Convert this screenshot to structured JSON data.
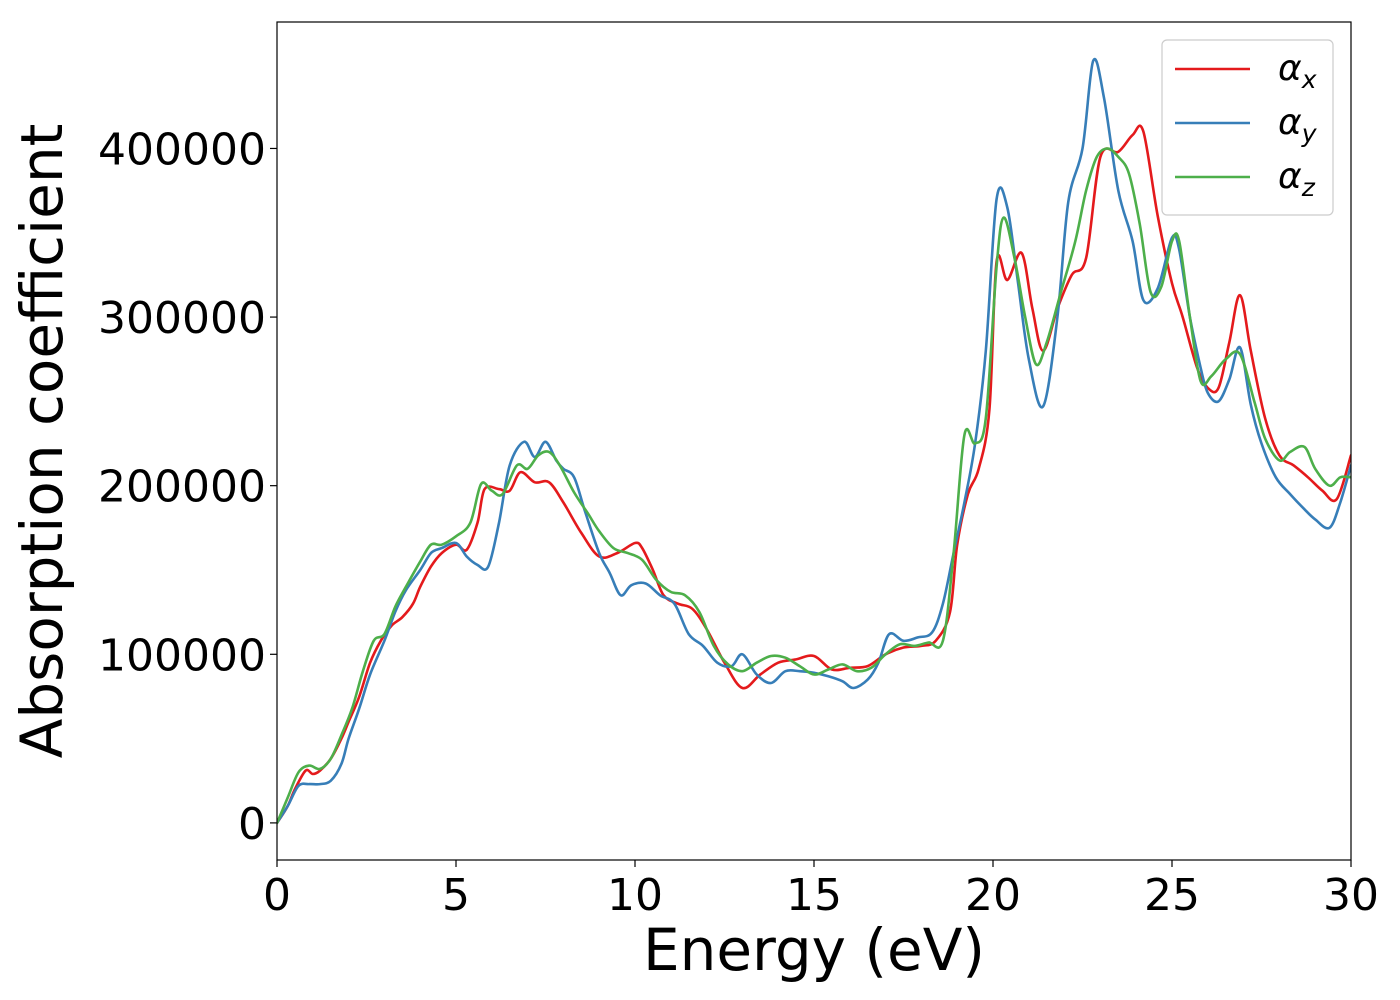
{
  "chart_data": {
    "type": "line",
    "title": "",
    "xlabel": "Energy (eV)",
    "ylabel": "Absorption coefficient",
    "xlim": [
      0,
      30
    ],
    "ylim": [
      -22000,
      475000
    ],
    "xticks": [
      0,
      5,
      10,
      15,
      20,
      25,
      30
    ],
    "yticks": [
      0,
      100000,
      200000,
      300000,
      400000
    ],
    "xtick_labels": [
      "0",
      "5",
      "10",
      "15",
      "20",
      "25",
      "30"
    ],
    "ytick_labels": [
      "0",
      "100000",
      "200000",
      "300000",
      "400000"
    ],
    "grid": false,
    "legend_position": "top-right",
    "series": [
      {
        "name": "αx",
        "label_base": "α",
        "label_sub": "x",
        "color": "#e41a1c",
        "x": [
          0,
          0.3,
          0.5,
          0.8,
          1.0,
          1.2,
          1.5,
          1.8,
          2.0,
          2.3,
          2.6,
          2.9,
          3.2,
          3.5,
          3.8,
          4.0,
          4.3,
          4.6,
          5.0,
          5.3,
          5.6,
          5.8,
          6.2,
          6.5,
          6.8,
          7.2,
          7.6,
          8.0,
          8.5,
          9.0,
          9.5,
          10.0,
          10.2,
          10.5,
          10.8,
          11.2,
          11.6,
          12.0,
          12.5,
          13.0,
          13.5,
          14.0,
          14.5,
          15.0,
          15.5,
          16.0,
          16.5,
          17.0,
          17.5,
          18.0,
          18.4,
          18.8,
          19.0,
          19.3,
          19.6,
          19.9,
          20.1,
          20.4,
          20.8,
          21.1,
          21.4,
          21.8,
          22.2,
          22.6,
          23.0,
          23.5,
          23.9,
          24.2,
          24.6,
          25.0,
          25.3,
          25.7,
          26.0,
          26.3,
          26.6,
          26.9,
          27.2,
          27.6,
          28.0,
          28.4,
          28.8,
          29.2,
          29.6,
          30.0
        ],
        "y": [
          0,
          10000,
          20000,
          31000,
          29000,
          31000,
          38000,
          50000,
          60000,
          75000,
          95000,
          108000,
          117000,
          122000,
          130000,
          140000,
          152000,
          160000,
          165000,
          162000,
          178000,
          198000,
          198000,
          197000,
          208000,
          202000,
          202000,
          190000,
          172000,
          158000,
          160000,
          166000,
          163000,
          150000,
          135000,
          130000,
          127000,
          115000,
          95000,
          80000,
          88000,
          95000,
          97000,
          99000,
          91000,
          92000,
          93000,
          100000,
          104000,
          105000,
          108000,
          125000,
          165000,
          195000,
          210000,
          245000,
          333000,
          322000,
          338000,
          305000,
          280000,
          305000,
          325000,
          335000,
          395000,
          398000,
          408000,
          410000,
          360000,
          320000,
          300000,
          270000,
          258000,
          258000,
          285000,
          313000,
          280000,
          240000,
          218000,
          212000,
          205000,
          197000,
          192000,
          218000
        ]
      },
      {
        "name": "αy",
        "label_base": "α",
        "label_sub": "y",
        "color": "#377eb8",
        "x": [
          0,
          0.3,
          0.6,
          0.9,
          1.2,
          1.5,
          1.8,
          2.0,
          2.3,
          2.6,
          3.0,
          3.3,
          3.6,
          4.0,
          4.3,
          4.6,
          5.0,
          5.3,
          5.6,
          5.9,
          6.2,
          6.5,
          6.9,
          7.2,
          7.5,
          7.8,
          8.0,
          8.3,
          8.6,
          9.0,
          9.3,
          9.6,
          9.9,
          10.3,
          10.7,
          11.1,
          11.5,
          11.9,
          12.3,
          12.7,
          13.0,
          13.4,
          13.8,
          14.2,
          14.6,
          15.0,
          15.4,
          15.8,
          16.1,
          16.5,
          16.8,
          17.1,
          17.5,
          17.9,
          18.3,
          18.6,
          18.9,
          19.2,
          19.5,
          19.8,
          20.1,
          20.4,
          20.7,
          21.0,
          21.4,
          21.8,
          22.1,
          22.5,
          22.8,
          23.1,
          23.5,
          23.9,
          24.2,
          24.6,
          25.0,
          25.2,
          25.5,
          25.8,
          26.0,
          26.3,
          26.6,
          26.9,
          27.2,
          27.5,
          27.9,
          28.3,
          28.7,
          29.0,
          29.4,
          29.7,
          30.0
        ],
        "y": [
          0,
          10000,
          22000,
          23000,
          23000,
          25000,
          35000,
          50000,
          68000,
          88000,
          108000,
          125000,
          138000,
          150000,
          160000,
          163000,
          166000,
          158000,
          153000,
          152000,
          178000,
          212000,
          226000,
          217000,
          226000,
          215000,
          210000,
          205000,
          185000,
          160000,
          148000,
          135000,
          141000,
          142000,
          135000,
          130000,
          112000,
          105000,
          95000,
          93000,
          100000,
          88000,
          83000,
          90000,
          90000,
          89000,
          87000,
          84000,
          80000,
          85000,
          95000,
          112000,
          108000,
          110000,
          113000,
          130000,
          160000,
          190000,
          225000,
          280000,
          370000,
          365000,
          320000,
          275000,
          247000,
          300000,
          368000,
          400000,
          452000,
          430000,
          375000,
          345000,
          310000,
          317000,
          347000,
          340000,
          300000,
          270000,
          255000,
          250000,
          263000,
          282000,
          248000,
          225000,
          205000,
          195000,
          186000,
          180000,
          175000,
          190000,
          212000
        ]
      },
      {
        "name": "αz",
        "label_base": "α",
        "label_sub": "z",
        "color": "#4daf4a",
        "x": [
          0,
          0.3,
          0.6,
          0.9,
          1.2,
          1.5,
          1.8,
          2.1,
          2.4,
          2.7,
          3.0,
          3.3,
          3.6,
          4.0,
          4.3,
          4.6,
          5.0,
          5.4,
          5.7,
          6.0,
          6.3,
          6.7,
          7.0,
          7.3,
          7.6,
          7.9,
          8.3,
          8.7,
          9.0,
          9.4,
          9.8,
          10.2,
          10.6,
          11.0,
          11.4,
          11.8,
          12.2,
          12.6,
          13.0,
          13.4,
          13.8,
          14.2,
          14.6,
          15.0,
          15.4,
          15.8,
          16.2,
          16.6,
          17.0,
          17.4,
          17.8,
          18.2,
          18.6,
          18.9,
          19.2,
          19.5,
          19.8,
          20.1,
          20.3,
          20.6,
          20.9,
          21.2,
          21.5,
          21.9,
          22.3,
          22.6,
          22.9,
          23.2,
          23.5,
          23.8,
          24.1,
          24.4,
          24.7,
          25.0,
          25.2,
          25.5,
          25.8,
          26.1,
          26.5,
          26.9,
          27.3,
          27.6,
          28.0,
          28.3,
          28.7,
          29.0,
          29.4,
          29.7,
          30.0
        ],
        "y": [
          0,
          15000,
          30000,
          34000,
          32000,
          38000,
          52000,
          68000,
          90000,
          108000,
          112000,
          128000,
          140000,
          155000,
          165000,
          165000,
          170000,
          178000,
          201000,
          197000,
          195000,
          212000,
          210000,
          218000,
          220000,
          212000,
          196000,
          183000,
          173000,
          163000,
          160000,
          156000,
          144000,
          137000,
          135000,
          125000,
          105000,
          94000,
          90000,
          95000,
          99000,
          98000,
          93000,
          88000,
          91000,
          94000,
          90000,
          92000,
          100000,
          106000,
          105000,
          107000,
          108000,
          160000,
          230000,
          225000,
          240000,
          330000,
          359000,
          335000,
          300000,
          272000,
          285000,
          315000,
          345000,
          375000,
          395000,
          400000,
          395000,
          385000,
          355000,
          315000,
          318000,
          345000,
          345000,
          300000,
          262000,
          265000,
          275000,
          278000,
          250000,
          228000,
          215000,
          220000,
          223000,
          210000,
          200000,
          205000,
          205000
        ]
      }
    ]
  }
}
